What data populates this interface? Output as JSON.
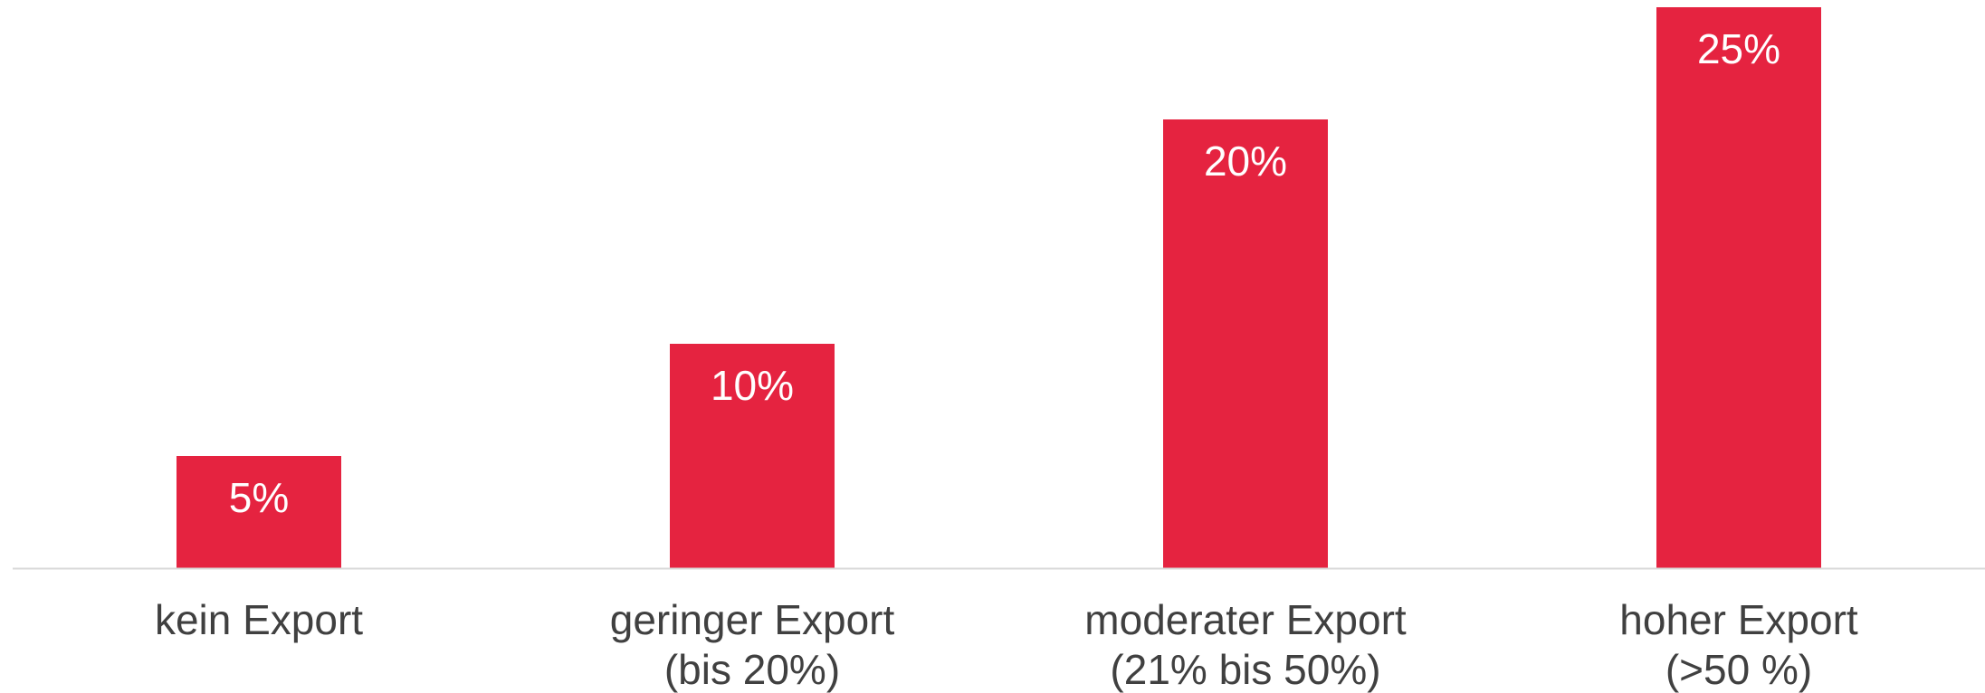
{
  "chart_data": {
    "type": "bar",
    "categories": [
      [
        "kein Export"
      ],
      [
        "geringer Export",
        "(bis 20%)"
      ],
      [
        "moderater Export",
        "(21% bis 50%)"
      ],
      [
        "hoher Export",
        "(>50 %)"
      ]
    ],
    "values": [
      5,
      10,
      20,
      25
    ],
    "data_labels": [
      "5%",
      "10%",
      "20%",
      "25%"
    ],
    "ylim": [
      0,
      25
    ],
    "bar_color": "#e52340",
    "axis_color": "#d9d9d9",
    "grid": false,
    "legend": "none"
  }
}
